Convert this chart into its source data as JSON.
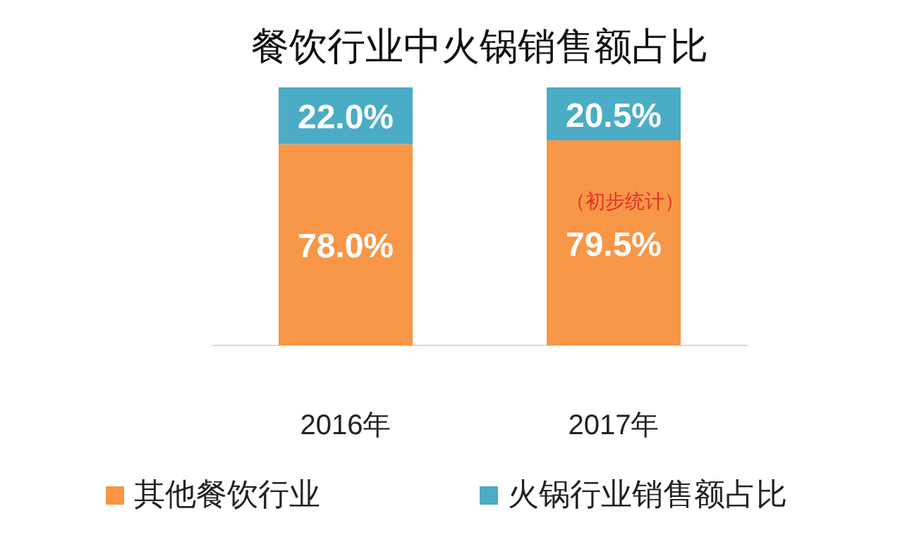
{
  "chart_data": {
    "type": "bar",
    "title": "餐饮行业中火锅销售额占比",
    "categories": [
      "2016年",
      "2017年"
    ],
    "stacked": true,
    "legend": "bottom",
    "tick_labels": "x",
    "series": [
      {
        "name": "其他餐饮行业",
        "color": "#f79646",
        "values": [
          78.0,
          79.5
        ],
        "value_labels": [
          "78.0%",
          "79.5%"
        ]
      },
      {
        "name": "火锅行业销售额占比",
        "color": "#4bacc6",
        "values": [
          22.0,
          20.5
        ],
        "value_labels": [
          "22.0%",
          "20.5%"
        ]
      }
    ],
    "annotations": [
      "（初步统计）"
    ]
  }
}
